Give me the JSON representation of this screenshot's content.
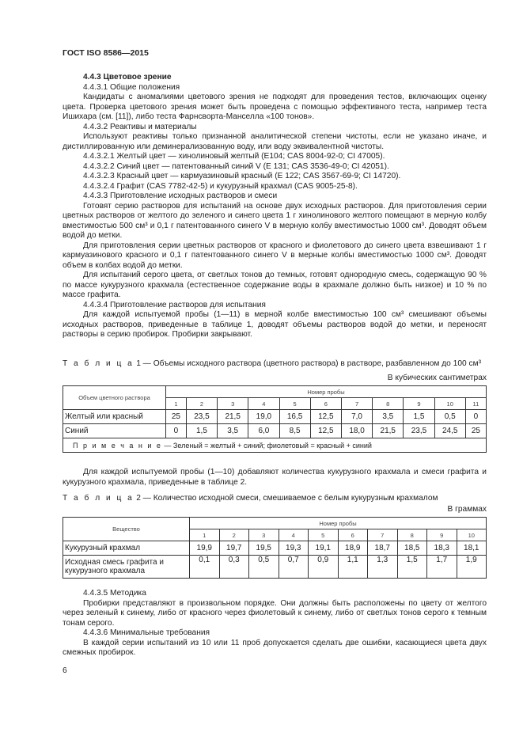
{
  "header": "ГОСТ ISO 8586—2015",
  "page_number": "6",
  "section1": [
    {
      "t": "4.4.3 Цветовое зрение",
      "bold": true
    },
    {
      "t": "4.4.3.1 Общие положения"
    },
    {
      "t": "Кандидаты с аномалиями цветового зрения не подходят для проведения тестов, включающих оценку цвета. Проверка цветового зрения может быть проведена с помощью эффективного теста, например теста Ишихара (см. [11]), либо теста Фарнсворта-Манселла «100 тонов»."
    },
    {
      "t": "4.4.3.2 Реактивы и материалы"
    },
    {
      "t": "Используют реактивы только признанной аналитической степени чистоты, если не указано иначе, и дистиллированную или деминерализованную воду, или воду эквивалентной чистоты."
    },
    {
      "t": "4.4.3.2.1 Желтый цвет — хинолиновый желтый (Е104; CAS 8004-92-0; CI 47005)."
    },
    {
      "t": "4.4.3.2.2 Синий цвет — патентованный синий V (E 131; CAS 3536-49-0; CI 42051)."
    },
    {
      "t": "4.4.3.2.3 Красный цвет — кармуазиновый красный (Е 122; CAS 3567-69-9; CI 14720)."
    },
    {
      "t": "4.4.3.2.4 Графит (CAS 7782-42-5) и кукурузный крахмал (CAS 9005-25-8)."
    },
    {
      "t": "4.4.3.3 Приготовление исходных растворов и смеси"
    },
    {
      "t": "Готовят серию растворов для испытаний на основе двух исходных растворов. Для приготовления серии цветных растворов от желтого до зеленого и синего цвета 1 г хинолинового желтого помещают в мерную колбу вместимостью 500 см³ и 0,1 г патентованного синего V в мерную колбу вместимостью 1000 см³. Доводят объем водой до метки."
    },
    {
      "t": "Для приготовления серии цветных растворов от красного и фиолетового до синего цвета взвешивают 1 г кармуазинового красного и 0,1 г патентованного синего V в мерные колбы вместимостью 1000 см³. Доводят объем в колбах водой до метки."
    },
    {
      "t": "Для испытаний серого цвета, от светлых тонов до темных, готовят однородную смесь, содержащую 90 % по массе кукурузного крахмала (естественное содержание воды в крахмале должно быть низкое) и 10 % по массе графита."
    },
    {
      "t": "4.4.3.4 Приготовление растворов для испытания"
    },
    {
      "t": "Для каждой испытуемой пробы (1—11) в мерной колбе вместимостью 100 см³ смешивают объемы исходных растворов, приведенные в таблице 1, доводят объемы растворов водой до метки, и переносят растворы в серию пробирок. Пробирки закрывают."
    }
  ],
  "table1": {
    "caption_prefix": "Т а б л и ц а",
    "caption": "1 — Объемы исходного раствора (цветного раствора) в растворе, разбавленном до 100 см³",
    "unit": "В кубических сантиметрах",
    "row_header": "Объем цветного раствора",
    "group_header": "Номер пробы",
    "columns": [
      "1",
      "2",
      "3",
      "4",
      "5",
      "6",
      "7",
      "8",
      "9",
      "10",
      "11"
    ],
    "rows": [
      {
        "label": "Желтый или красный",
        "values": [
          "25",
          "23,5",
          "21,5",
          "19,0",
          "16,5",
          "12,5",
          "7,0",
          "3,5",
          "1,5",
          "0,5",
          "0"
        ]
      },
      {
        "label": "Синий",
        "values": [
          "0",
          "1,5",
          "3,5",
          "6,0",
          "8,5",
          "12,5",
          "18,0",
          "21,5",
          "23,5",
          "24,5",
          "25"
        ]
      }
    ],
    "note_prefix": "П р и м е ч а н и е",
    "note": "— Зеленый = желтый + синий; фиолетовый = красный + синий"
  },
  "section2": [
    {
      "t": "Для каждой испытуемой пробы (1—10) добавляют количества кукурузного крахмала и смеси графита и кукурузного крахмала, приведенные в таблице 2."
    }
  ],
  "table2": {
    "caption_prefix": "Т а б л и ц а",
    "caption": "2 — Количество исходной смеси, смешиваемое с белым кукурузным крахмалом",
    "unit": "В граммах",
    "row_header": "Вещество",
    "group_header": "Номер пробы",
    "columns": [
      "1",
      "2",
      "3",
      "4",
      "5",
      "6",
      "7",
      "8",
      "9",
      "10"
    ],
    "rows": [
      {
        "label": "Кукурузный крахмал",
        "values": [
          "19,9",
          "19,7",
          "19,5",
          "19,3",
          "19,1",
          "18,9",
          "18,7",
          "18,5",
          "18,3",
          "18,1"
        ]
      },
      {
        "label": "Исходная смесь графита и кукурузного крахмала",
        "values": [
          "0,1",
          "0,3",
          "0,5",
          "0,7",
          "0,9",
          "1,1",
          "1,3",
          "1,5",
          "1,7",
          "1,9"
        ]
      }
    ]
  },
  "section3": [
    {
      "t": "4.4.3.5 Методика"
    },
    {
      "t": "Пробирки представляют в произвольном порядке. Они должны быть расположены по цвету от желтого через зеленый к синему, либо от красного через фиолетовый к синему, либо от светлых тонов серого к темным тонам серого."
    },
    {
      "t": "4.4.3.6 Минимальные требования"
    },
    {
      "t": "В каждой серии испытаний из 10 или 11 проб допускается сделать две ошибки, касающиеся цвета двух смежных пробирок."
    }
  ]
}
